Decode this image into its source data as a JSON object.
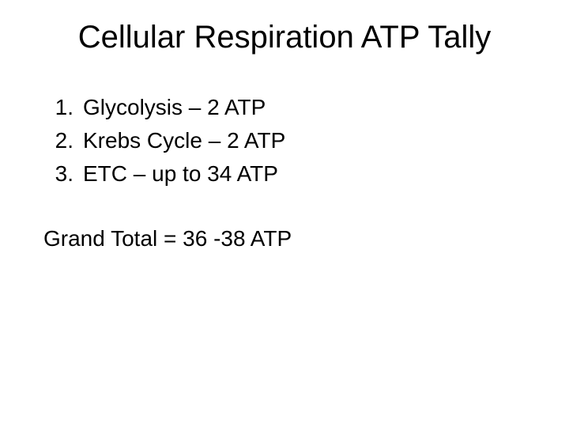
{
  "slide": {
    "title": "Cellular Respiration ATP Tally",
    "items": [
      {
        "number": "1.",
        "text": "Glycolysis – 2 ATP"
      },
      {
        "number": "2.",
        "text": "Krebs Cycle – 2 ATP"
      },
      {
        "number": "3.",
        "text": "ETC – up to 34 ATP"
      }
    ],
    "total": "Grand Total = 36 -38 ATP"
  },
  "style": {
    "background_color": "#ffffff",
    "text_color": "#000000",
    "title_fontsize": 40,
    "body_fontsize": 28,
    "font_family": "Arial"
  }
}
